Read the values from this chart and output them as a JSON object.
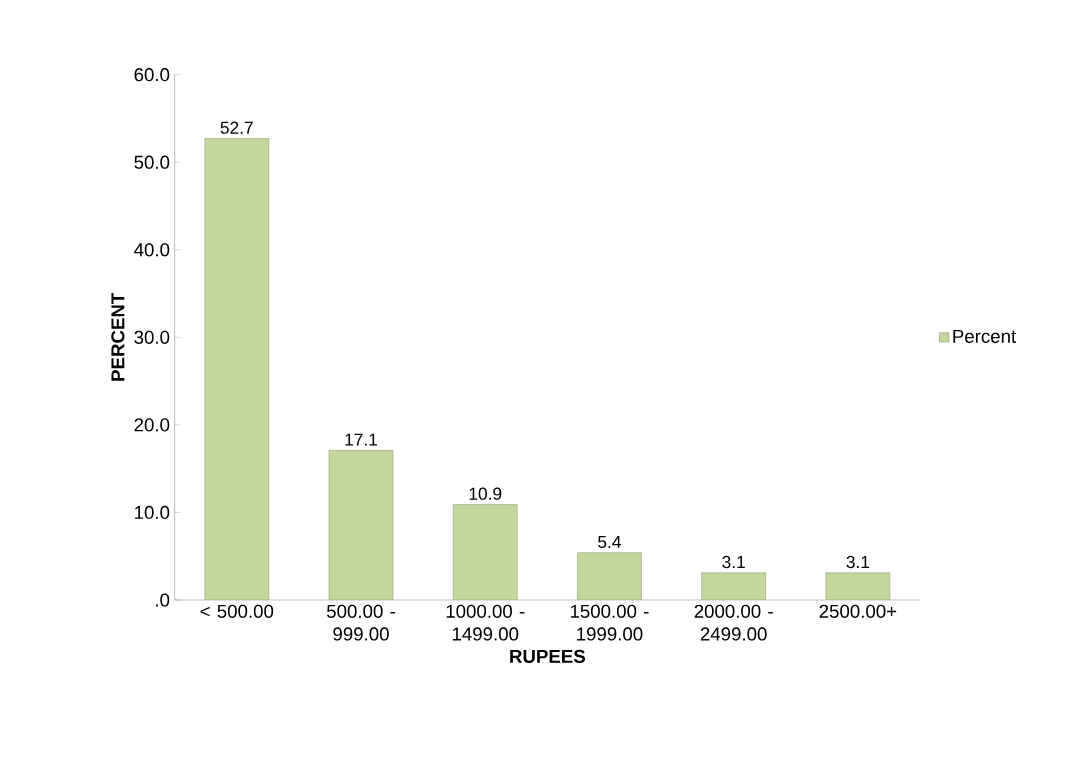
{
  "chart_data": {
    "type": "bar",
    "xlabel": "RUPEES",
    "ylabel": "PERCENT",
    "categories": [
      "< 500.00",
      "500.00 - 999.00",
      "1000.00 - 1499.00",
      "1500.00 - 1999.00",
      "2000.00 - 2499.00",
      "2500.00+"
    ],
    "series": [
      {
        "name": "Percent",
        "color": "#c3d69b",
        "values": [
          52.7,
          17.1,
          10.9,
          5.4,
          3.1,
          3.1
        ]
      }
    ],
    "ylim": [
      0,
      60
    ],
    "yticks": [
      {
        "value": 0,
        "label": ".0"
      },
      {
        "value": 10,
        "label": "10.0"
      },
      {
        "value": 20,
        "label": "20.0"
      },
      {
        "value": 30,
        "label": "30.0"
      },
      {
        "value": 40,
        "label": "40.0"
      },
      {
        "value": 50,
        "label": "50.0"
      },
      {
        "value": 60,
        "label": "60.0"
      }
    ],
    "data_labels": true,
    "legend": "right",
    "grid": false
  }
}
